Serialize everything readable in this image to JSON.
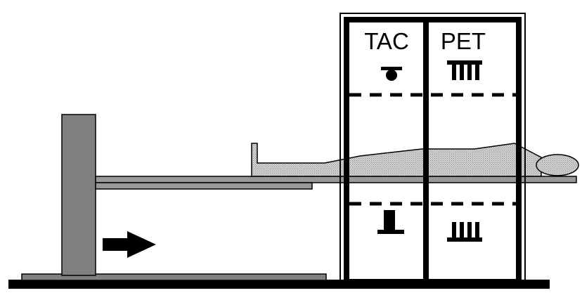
{
  "labels": {
    "left_module": "TAC",
    "right_module": "PET"
  },
  "colors": {
    "ink": "#000000",
    "column": "#808080",
    "table": "#999999",
    "patient": "#c8c8c8",
    "background": "#ffffff"
  },
  "icons": {
    "motion_arrow": "arrow-right-icon",
    "ct_source": "xray-tube-icon",
    "ct_detector": "ct-detector-icon",
    "pet_detector": "pet-detector-icon"
  }
}
